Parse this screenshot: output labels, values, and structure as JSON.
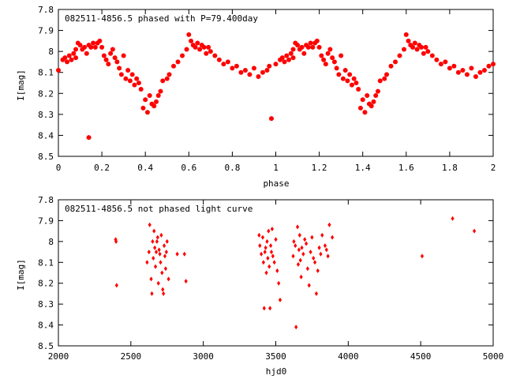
{
  "chart_data": [
    {
      "type": "scatter",
      "title": "082511-4856.5 phased with P=79.400day",
      "xlabel": "phase",
      "ylabel": "I[mag]",
      "xlim": [
        0,
        2
      ],
      "ylim": [
        7.8,
        8.5
      ],
      "y_inverted": true,
      "x_ticks": [
        "0",
        "0.2",
        "0.4",
        "0.6",
        "0.8",
        "1",
        "1.2",
        "1.4",
        "1.6",
        "1.8",
        "2"
      ],
      "y_ticks": [
        "7.8",
        "7.9",
        "8",
        "8.1",
        "8.2",
        "8.3",
        "8.4",
        "8.5"
      ],
      "color": "#ff0000",
      "marker": "filled-circle",
      "grid": false,
      "x": [
        0.0,
        0.02,
        0.03,
        0.04,
        0.05,
        0.06,
        0.07,
        0.08,
        0.08,
        0.09,
        0.1,
        0.11,
        0.12,
        0.13,
        0.14,
        0.15,
        0.16,
        0.17,
        0.18,
        0.19,
        0.2,
        0.21,
        0.22,
        0.23,
        0.24,
        0.25,
        0.26,
        0.27,
        0.28,
        0.29,
        0.3,
        0.31,
        0.32,
        0.33,
        0.34,
        0.35,
        0.36,
        0.37,
        0.38,
        0.39,
        0.4,
        0.41,
        0.42,
        0.43,
        0.44,
        0.45,
        0.46,
        0.47,
        0.48,
        0.5,
        0.51,
        0.14,
        0.53,
        0.55,
        0.57,
        0.59,
        0.6,
        0.61,
        0.62,
        0.63,
        0.64,
        0.65,
        0.66,
        0.67,
        0.68,
        0.69,
        0.7,
        0.72,
        0.74,
        0.76,
        0.78,
        0.8,
        0.82,
        0.84,
        0.86,
        0.88,
        0.9,
        0.92,
        0.94,
        0.96,
        0.97,
        0.98,
        1.0,
        1.02,
        1.03,
        1.04,
        1.05,
        1.06,
        1.07,
        1.08,
        1.08,
        1.09,
        1.1,
        1.11,
        1.12,
        1.13,
        1.14,
        1.15,
        1.16,
        1.17,
        1.18,
        1.19,
        1.2,
        1.21,
        1.22,
        1.23,
        1.24,
        1.25,
        1.26,
        1.27,
        1.28,
        1.29,
        1.3,
        1.31,
        1.32,
        1.33,
        1.34,
        1.35,
        1.36,
        1.37,
        1.38,
        1.39,
        1.4,
        1.41,
        1.42,
        1.43,
        1.44,
        1.45,
        1.46,
        1.47,
        1.48,
        1.5,
        1.51,
        1.53,
        1.55,
        1.57,
        1.59,
        1.6,
        1.61,
        1.62,
        1.63,
        1.64,
        1.65,
        1.66,
        1.67,
        1.68,
        1.69,
        1.7,
        1.72,
        1.74,
        1.76,
        1.78,
        1.8,
        1.82,
        1.84,
        1.86,
        1.88,
        1.9,
        1.92,
        1.94,
        1.96,
        1.98,
        2.0
      ],
      "y": [
        8.09,
        8.04,
        8.03,
        8.05,
        8.02,
        8.04,
        8.01,
        8.03,
        7.99,
        7.96,
        7.97,
        7.99,
        7.98,
        8.01,
        7.97,
        7.98,
        7.96,
        7.98,
        7.96,
        7.95,
        7.98,
        8.02,
        8.04,
        8.06,
        8.01,
        7.99,
        8.03,
        8.05,
        8.08,
        8.11,
        8.02,
        8.13,
        8.09,
        8.14,
        8.11,
        8.16,
        8.13,
        8.15,
        8.18,
        8.27,
        8.23,
        8.29,
        8.21,
        8.25,
        8.26,
        8.24,
        8.21,
        8.19,
        8.14,
        8.13,
        8.11,
        8.41,
        8.07,
        8.05,
        8.02,
        7.99,
        7.92,
        7.95,
        7.97,
        7.98,
        7.96,
        7.99,
        7.97,
        7.98,
        8.01,
        7.98,
        8.0,
        8.02,
        8.04,
        8.06,
        8.05,
        8.08,
        8.07,
        8.1,
        8.09,
        8.11,
        8.08,
        8.12,
        8.1,
        8.09,
        8.07,
        8.32,
        8.06,
        8.04,
        8.03,
        8.05,
        8.02,
        8.04,
        8.01,
        8.03,
        7.99,
        7.96,
        7.97,
        7.99,
        7.98,
        8.01,
        7.97,
        7.98,
        7.96,
        7.98,
        7.96,
        7.95,
        7.98,
        8.02,
        8.04,
        8.06,
        8.01,
        7.99,
        8.03,
        8.05,
        8.08,
        8.11,
        8.02,
        8.13,
        8.09,
        8.14,
        8.11,
        8.16,
        8.13,
        8.15,
        8.18,
        8.27,
        8.23,
        8.29,
        8.21,
        8.25,
        8.26,
        8.24,
        8.21,
        8.19,
        8.14,
        8.13,
        8.11,
        8.07,
        8.05,
        8.02,
        7.99,
        7.92,
        7.95,
        7.97,
        7.98,
        7.96,
        7.99,
        7.97,
        7.98,
        8.01,
        7.98,
        8.0,
        8.02,
        8.04,
        8.06,
        8.05,
        8.08,
        8.07,
        8.1,
        8.09,
        8.11,
        8.08,
        8.12,
        8.1,
        8.09,
        8.07,
        8.06
      ]
    },
    {
      "type": "scatter",
      "title": "082511-4856.5 not phased light curve",
      "xlabel": "hjd0",
      "ylabel": "I[mag]",
      "xlim": [
        2000,
        5000
      ],
      "ylim": [
        7.8,
        8.5
      ],
      "y_inverted": true,
      "x_ticks": [
        "2000",
        "2500",
        "3000",
        "3500",
        "4000",
        "4500",
        "5000"
      ],
      "y_ticks": [
        "7.8",
        "7.9",
        "8",
        "8.1",
        "8.2",
        "8.3",
        "8.4",
        "8.5"
      ],
      "color": "#ff0000",
      "marker": "diamond",
      "grid": false,
      "x": [
        2395,
        2398,
        2402,
        2612,
        2625,
        2630,
        2640,
        2645,
        2650,
        2655,
        2660,
        2665,
        2670,
        2675,
        2680,
        2685,
        2690,
        2695,
        2700,
        2705,
        2710,
        2715,
        2720,
        2725,
        2730,
        2735,
        2740,
        2745,
        2750,
        2760,
        2820,
        2870,
        2880,
        3385,
        3390,
        3400,
        3410,
        3415,
        3420,
        3425,
        3430,
        3435,
        3440,
        3445,
        3450,
        3455,
        3460,
        3465,
        3470,
        3475,
        3480,
        3490,
        3500,
        3510,
        3520,
        3530,
        3620,
        3625,
        3635,
        3640,
        3650,
        3655,
        3660,
        3665,
        3670,
        3675,
        3680,
        3690,
        3700,
        3710,
        3720,
        3730,
        3740,
        3750,
        3760,
        3770,
        3780,
        3790,
        3800,
        3810,
        3820,
        3840,
        3850,
        3860,
        3870,
        3890,
        4510,
        4720,
        4870
      ],
      "y": [
        7.99,
        8.0,
        8.21,
        8.1,
        8.05,
        7.92,
        8.18,
        8.25,
        8.0,
        8.08,
        7.95,
        8.03,
        8.12,
        8.05,
        8.0,
        7.98,
        8.2,
        8.04,
        8.06,
        8.1,
        7.97,
        8.15,
        8.23,
        8.25,
        8.02,
        8.07,
        8.13,
        8.05,
        8.0,
        8.18,
        8.06,
        8.06,
        8.19,
        7.97,
        8.02,
        8.06,
        7.98,
        8.1,
        8.32,
        8.05,
        8.03,
        8.15,
        8.0,
        8.08,
        7.95,
        8.12,
        8.32,
        8.02,
        8.05,
        7.94,
        8.07,
        8.1,
        7.99,
        8.14,
        8.2,
        8.28,
        8.07,
        8.0,
        8.02,
        8.41,
        7.93,
        8.11,
        8.04,
        7.97,
        8.09,
        8.17,
        8.03,
        8.06,
        7.99,
        8.01,
        8.13,
        8.21,
        8.05,
        7.98,
        8.08,
        8.1,
        8.25,
        8.14,
        8.03,
        8.06,
        7.97,
        8.02,
        8.04,
        8.07,
        7.92,
        7.98,
        8.07,
        7.89,
        7.95
      ]
    }
  ]
}
